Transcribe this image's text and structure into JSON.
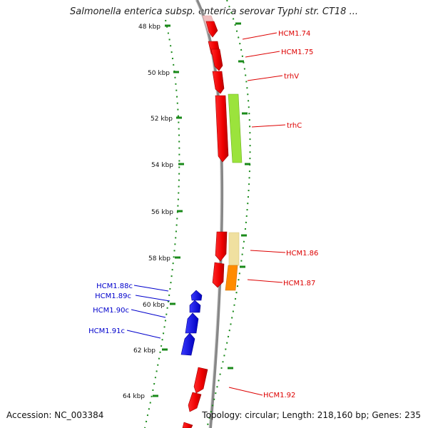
{
  "title": "Salmonella enterica subsp. enterica serovar Typhi str. CT18 ...",
  "footer": {
    "accession": "Accession: NC_003384",
    "summary": "Topology: circular; Length: 218,160 bp; Genes: 235"
  },
  "ruler": [
    {
      "label": "48 kbp",
      "kbp": 48
    },
    {
      "label": "50 kbp",
      "kbp": 50
    },
    {
      "label": "52 kbp",
      "kbp": 52
    },
    {
      "label": "54 kbp",
      "kbp": 54
    },
    {
      "label": "56 kbp",
      "kbp": 56
    },
    {
      "label": "58 kbp",
      "kbp": 58
    },
    {
      "label": "60 kbp",
      "kbp": 60
    },
    {
      "label": "62 kbp",
      "kbp": 62
    },
    {
      "label": "64 kbp",
      "kbp": 64
    }
  ],
  "gene_labels": [
    {
      "label": "HCM1.74",
      "strand": "forward",
      "color": "#dd0000"
    },
    {
      "label": "HCM1.75",
      "strand": "forward",
      "color": "#dd0000"
    },
    {
      "label": "trhV",
      "strand": "forward",
      "color": "#dd0000"
    },
    {
      "label": "trhC",
      "strand": "forward",
      "color": "#dd0000"
    },
    {
      "label": "HCM1.86",
      "strand": "forward",
      "color": "#dd0000"
    },
    {
      "label": "HCM1.87",
      "strand": "forward",
      "color": "#dd0000"
    },
    {
      "label": "HCM1.92",
      "strand": "forward",
      "color": "#dd0000"
    },
    {
      "label": "HCM1.88c",
      "strand": "reverse",
      "color": "#0000cc"
    },
    {
      "label": "HCM1.89c",
      "strand": "reverse",
      "color": "#0000cc"
    },
    {
      "label": "HCM1.90c",
      "strand": "reverse",
      "color": "#0000cc"
    },
    {
      "label": "HCM1.91c",
      "strand": "reverse",
      "color": "#0000cc"
    }
  ],
  "colors": {
    "forward_gene": "#ee0000",
    "reverse_gene": "#0000ee",
    "backbone": "#888888",
    "ruler": "#1a8a1a",
    "green_feature": "#9be33c",
    "khaki_feature": "#f0e0a0",
    "orange_feature": "#ff8c00"
  }
}
